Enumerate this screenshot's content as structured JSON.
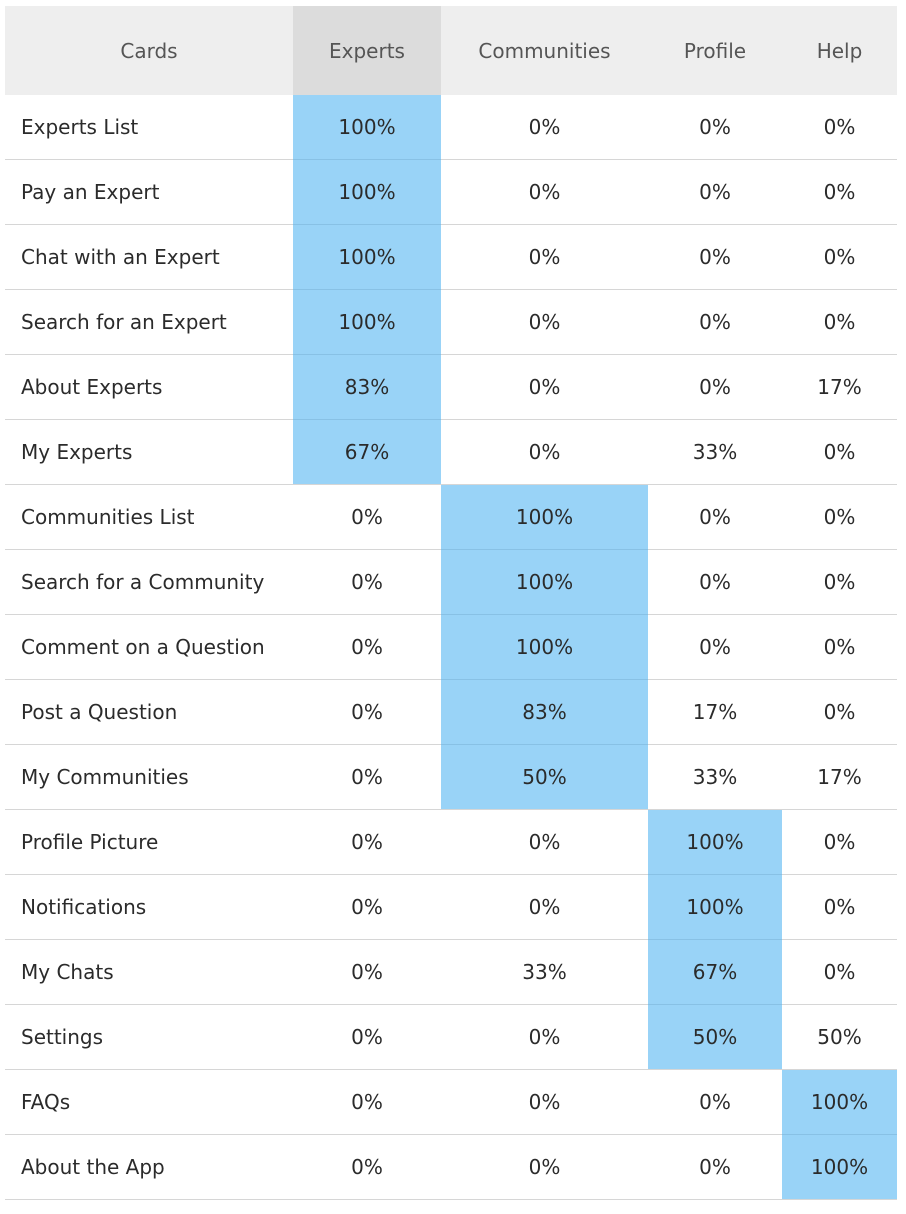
{
  "chart_data": {
    "type": "table",
    "columns": [
      "Cards",
      "Experts",
      "Communities",
      "Profile",
      "Help"
    ],
    "selected_header": "Experts",
    "highlight_color": "#99d3f7",
    "rows": [
      {
        "label": "Experts List",
        "values": [
          "100%",
          "0%",
          "0%",
          "0%"
        ],
        "highlight": 0
      },
      {
        "label": "Pay an Expert",
        "values": [
          "100%",
          "0%",
          "0%",
          "0%"
        ],
        "highlight": 0
      },
      {
        "label": "Chat with an Expert",
        "values": [
          "100%",
          "0%",
          "0%",
          "0%"
        ],
        "highlight": 0
      },
      {
        "label": "Search for an Expert",
        "values": [
          "100%",
          "0%",
          "0%",
          "0%"
        ],
        "highlight": 0
      },
      {
        "label": "About Experts",
        "values": [
          "83%",
          "0%",
          "0%",
          "17%"
        ],
        "highlight": 0
      },
      {
        "label": "My Experts",
        "values": [
          "67%",
          "0%",
          "33%",
          "0%"
        ],
        "highlight": 0
      },
      {
        "label": "Communities List",
        "values": [
          "0%",
          "100%",
          "0%",
          "0%"
        ],
        "highlight": 1
      },
      {
        "label": "Search for a Community",
        "values": [
          "0%",
          "100%",
          "0%",
          "0%"
        ],
        "highlight": 1
      },
      {
        "label": "Comment on a Question",
        "values": [
          "0%",
          "100%",
          "0%",
          "0%"
        ],
        "highlight": 1
      },
      {
        "label": "Post a Question",
        "values": [
          "0%",
          "83%",
          "17%",
          "0%"
        ],
        "highlight": 1
      },
      {
        "label": "My Communities",
        "values": [
          "0%",
          "50%",
          "33%",
          "17%"
        ],
        "highlight": 1
      },
      {
        "label": "Profile Picture",
        "values": [
          "0%",
          "0%",
          "100%",
          "0%"
        ],
        "highlight": 2
      },
      {
        "label": "Notifications",
        "values": [
          "0%",
          "0%",
          "100%",
          "0%"
        ],
        "highlight": 2
      },
      {
        "label": "My Chats",
        "values": [
          "0%",
          "33%",
          "67%",
          "0%"
        ],
        "highlight": 2
      },
      {
        "label": "Settings",
        "values": [
          "0%",
          "0%",
          "50%",
          "50%"
        ],
        "highlight": 2
      },
      {
        "label": "FAQs",
        "values": [
          "0%",
          "0%",
          "0%",
          "100%"
        ],
        "highlight": 3
      },
      {
        "label": "About the App",
        "values": [
          "0%",
          "0%",
          "0%",
          "100%"
        ],
        "highlight": 3
      }
    ]
  }
}
